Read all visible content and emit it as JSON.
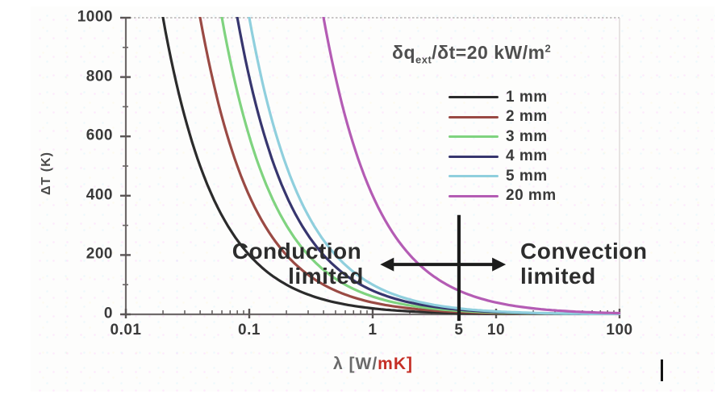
{
  "chart_data": {
    "type": "line",
    "title": "",
    "xlabel": "λ [W/mK]",
    "ylabel": "ΔT (K)",
    "xlabel_parts": {
      "main": "λ [W/",
      "red": "mK]"
    },
    "x_scale": "log",
    "xlim": [
      0.01,
      100
    ],
    "ylim": [
      0,
      1000
    ],
    "grid": false,
    "legend_position": "upper right",
    "x_tick_values": [
      0.01,
      0.1,
      1,
      5,
      10,
      100
    ],
    "x_tick_labels": [
      "0.01",
      "0.1",
      "1",
      "5",
      "10",
      "100"
    ],
    "y_tick_values": [
      1000,
      800,
      600,
      400,
      200,
      0
    ],
    "y_tick_labels": [
      "1000",
      "800",
      "600",
      "400",
      "200",
      "0"
    ],
    "flux_annotation": {
      "prefix": "δq",
      "sub": "ext",
      "mid": "/δt=20 kW/m",
      "sup": "2",
      "full": "δq_ext/δt=20 kW/m²"
    },
    "regions": {
      "conduction": [
        "Conduction",
        "limited"
      ],
      "convection": [
        "Convection",
        "limited"
      ]
    },
    "markers": {
      "divider_lambda": 5,
      "divider_T_top": 335,
      "divider_T_bottom": -22,
      "arrow_lambda_from": 1.15,
      "arrow_lambda_to": 12,
      "arrow_T": 168
    },
    "series": [
      {
        "label": "1 mm",
        "thickness_mm": 1,
        "color": "#2b2b2b",
        "x": [
          0.016,
          0.02,
          0.04,
          0.1,
          0.2,
          0.4,
          1,
          2,
          4,
          10,
          20,
          40,
          100
        ],
        "y": [
          1250,
          1000,
          500,
          200,
          100,
          50,
          20,
          10,
          5,
          2,
          1,
          0.5,
          0.2
        ]
      },
      {
        "label": "2 mm",
        "thickness_mm": 2,
        "color": "#9a4a44",
        "x": [
          0.032,
          0.04,
          0.08,
          0.2,
          0.4,
          0.8,
          2,
          4,
          8,
          20,
          40,
          80,
          100
        ],
        "y": [
          1250,
          1000,
          500,
          200,
          100,
          50,
          20,
          10,
          5,
          2,
          1,
          0.5,
          0.4
        ]
      },
      {
        "label": "3 mm",
        "thickness_mm": 3,
        "color": "#7fd37f",
        "x": [
          0.048,
          0.06,
          0.12,
          0.3,
          0.6,
          1.2,
          3,
          6,
          12,
          30,
          60,
          100
        ],
        "y": [
          1250,
          1000,
          500,
          200,
          100,
          50,
          20,
          10,
          5,
          2,
          1,
          0.6
        ]
      },
      {
        "label": "4 mm",
        "thickness_mm": 4,
        "color": "#37366e",
        "x": [
          0.064,
          0.08,
          0.16,
          0.4,
          0.8,
          1.6,
          4,
          8,
          16,
          40,
          80,
          100
        ],
        "y": [
          1250,
          1000,
          500,
          200,
          100,
          50,
          20,
          10,
          5,
          2,
          1,
          0.8
        ]
      },
      {
        "label": "5 mm",
        "thickness_mm": 5,
        "color": "#8fcfdd",
        "x": [
          0.08,
          0.1,
          0.2,
          0.5,
          1,
          2,
          5,
          10,
          20,
          50,
          100
        ],
        "y": [
          1250,
          1000,
          500,
          200,
          100,
          50,
          20,
          10,
          5,
          2,
          1
        ]
      },
      {
        "label": "20 mm",
        "thickness_mm": 20,
        "color": "#b45cb4",
        "x": [
          0.32,
          0.4,
          0.8,
          2,
          4,
          8,
          20,
          40,
          80,
          100
        ],
        "y": [
          1250,
          1000,
          500,
          200,
          100,
          50,
          20,
          10,
          5,
          4
        ]
      }
    ]
  }
}
